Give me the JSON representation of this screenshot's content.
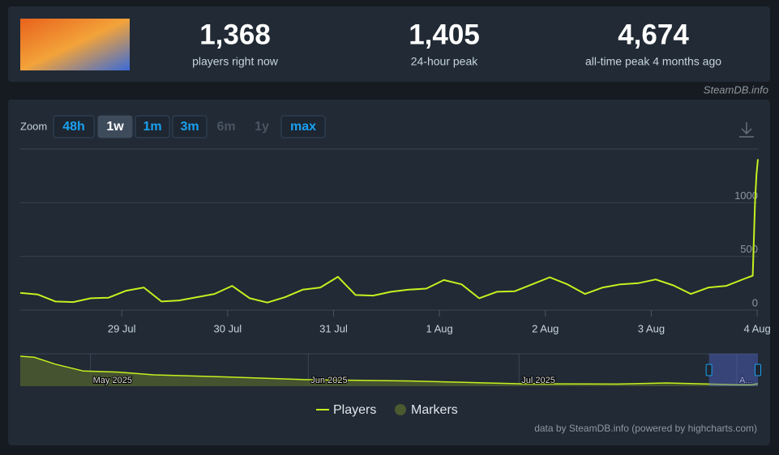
{
  "header": {
    "stats": [
      {
        "value": "1,368",
        "label": "players right now"
      },
      {
        "value": "1,405",
        "label": "24-hour peak"
      },
      {
        "value": "4,674",
        "label": "all-time peak 4 months ago"
      }
    ],
    "source": "SteamDB.info"
  },
  "zoom": {
    "label": "Zoom",
    "options": [
      "48h",
      "1w",
      "1m",
      "3m",
      "6m",
      "1y",
      "max"
    ],
    "active": "1w",
    "disabled": [
      "6m",
      "1y"
    ]
  },
  "chart_data": {
    "type": "line",
    "series": [
      {
        "name": "Players",
        "color": "#c6f01f",
        "x": [
          "2025-07-28T01:00",
          "2025-07-28T05:00",
          "2025-07-28T09:00",
          "2025-07-28T13:00",
          "2025-07-28T17:00",
          "2025-07-28T21:00",
          "2025-07-29T01:00",
          "2025-07-29T05:00",
          "2025-07-29T09:00",
          "2025-07-29T13:00",
          "2025-07-29T17:00",
          "2025-07-29T21:00",
          "2025-07-30T01:00",
          "2025-07-30T05:00",
          "2025-07-30T09:00",
          "2025-07-30T13:00",
          "2025-07-30T17:00",
          "2025-07-30T21:00",
          "2025-07-31T01:00",
          "2025-07-31T05:00",
          "2025-07-31T09:00",
          "2025-07-31T13:00",
          "2025-07-31T17:00",
          "2025-07-31T21:00",
          "2025-08-01T01:00",
          "2025-08-01T05:00",
          "2025-08-01T09:00",
          "2025-08-01T13:00",
          "2025-08-01T17:00",
          "2025-08-01T21:00",
          "2025-08-02T01:00",
          "2025-08-02T05:00",
          "2025-08-02T09:00",
          "2025-08-02T13:00",
          "2025-08-02T17:00",
          "2025-08-02T21:00",
          "2025-08-03T01:00",
          "2025-08-03T05:00",
          "2025-08-03T09:00",
          "2025-08-03T13:00",
          "2025-08-03T17:00",
          "2025-08-03T21:00",
          "2025-08-03T23:00",
          "2025-08-03T23:30",
          "2025-08-03T23:50",
          "2025-08-04T00:10"
        ],
        "values": [
          160,
          145,
          80,
          75,
          110,
          115,
          180,
          210,
          80,
          90,
          120,
          150,
          225,
          110,
          70,
          120,
          190,
          210,
          310,
          140,
          135,
          170,
          190,
          200,
          280,
          240,
          110,
          170,
          175,
          240,
          305,
          240,
          150,
          210,
          240,
          250,
          285,
          230,
          150,
          210,
          225,
          290,
          320,
          1000,
          1260,
          1405
        ]
      }
    ],
    "markers": {
      "name": "Markers",
      "color": "#4b5a2f"
    },
    "xlim": [
      "2025-07-28T01:00",
      "2025-08-04T00:10"
    ],
    "xticks": [
      {
        "value": "2025-07-29T00:00",
        "label": "29 Jul"
      },
      {
        "value": "2025-07-30T00:00",
        "label": "30 Jul"
      },
      {
        "value": "2025-07-31T00:00",
        "label": "31 Jul"
      },
      {
        "value": "2025-08-01T00:00",
        "label": "1 Aug"
      },
      {
        "value": "2025-08-02T00:00",
        "label": "2 Aug"
      },
      {
        "value": "2025-08-03T00:00",
        "label": "3 Aug"
      },
      {
        "value": "2025-08-04T00:00",
        "label": "4 Aug"
      }
    ],
    "ylim": [
      0,
      1500
    ],
    "yticks": [
      0,
      500,
      1000
    ],
    "grid": true
  },
  "navigator": {
    "x": [
      "2025-04-21T00:00",
      "2025-04-23T00:00",
      "2025-04-26T00:00",
      "2025-04-30T00:00",
      "2025-05-05T00:00",
      "2025-05-10T00:00",
      "2025-05-20T00:00",
      "2025-06-01T00:00",
      "2025-06-15T00:00",
      "2025-07-01T00:00",
      "2025-07-15T00:00",
      "2025-07-22T00:00",
      "2025-08-01T00:00",
      "2025-08-03T00:00",
      "2025-08-04T00:10"
    ],
    "values": [
      4350,
      4200,
      3200,
      2200,
      2050,
      1650,
      1350,
      940,
      760,
      350,
      300,
      470,
      200,
      200,
      350
    ],
    "xlim": [
      "2025-04-21T00:00",
      "2025-08-04T00:10"
    ],
    "ylim": [
      0,
      4700
    ],
    "xticks": [
      {
        "value": "2025-05-01T00:00",
        "label": "May 2025"
      },
      {
        "value": "2025-06-01T00:00",
        "label": "Jun 2025"
      },
      {
        "value": "2025-07-01T00:00",
        "label": "Jul 2025"
      },
      {
        "value": "2025-08-01T00:00",
        "label": "A..."
      }
    ]
  },
  "credit": "data by SteamDB.info (powered by highcharts.com)"
}
